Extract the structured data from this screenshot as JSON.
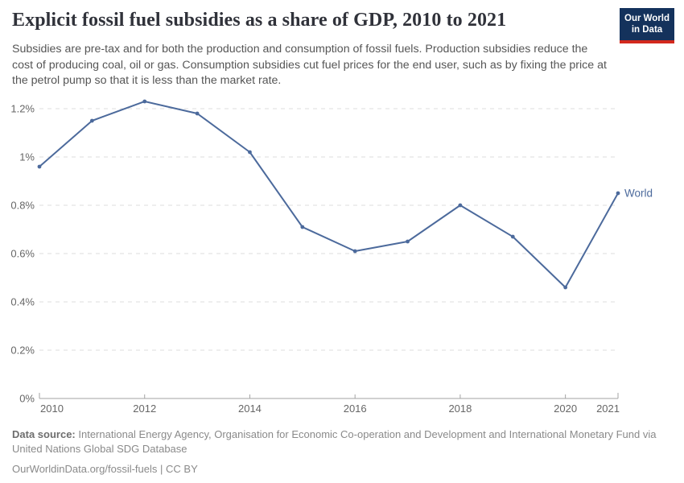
{
  "header": {
    "title": "Explicit fossil fuel subsidies as a share of GDP, 2010 to 2021",
    "subtitle": "Subsidies are pre-tax and for both the production and consumption of fossil fuels. Production subsidies reduce the cost of producing coal, oil or gas. Consumption subsidies cut fuel prices for the end user, such as by fixing the price at the petrol pump so that it is less than the market rate.",
    "logo": {
      "line1": "Our World",
      "line2": "in Data",
      "bg_color": "#14325c",
      "accent_color": "#d3291d"
    }
  },
  "chart_data": {
    "type": "line",
    "title": "Explicit fossil fuel subsidies as a share of GDP, 2010 to 2021",
    "xlabel": "",
    "ylabel": "",
    "unit": "% of GDP",
    "x": [
      2010,
      2011,
      2012,
      2013,
      2014,
      2015,
      2016,
      2017,
      2018,
      2019,
      2020,
      2021
    ],
    "series": [
      {
        "name": "World",
        "color": "#4c6a9c",
        "values": [
          0.96,
          1.15,
          1.23,
          1.18,
          1.02,
          0.71,
          0.61,
          0.65,
          0.8,
          0.67,
          0.46,
          0.85
        ]
      }
    ],
    "x_ticks": [
      2010,
      2012,
      2014,
      2016,
      2018,
      2020,
      2021
    ],
    "y_ticks": [
      0,
      0.2,
      0.4,
      0.6,
      0.8,
      1.0,
      1.2
    ],
    "y_tick_labels": [
      "0%",
      "0.2%",
      "0.4%",
      "0.6%",
      "0.8%",
      "1%",
      "1.2%"
    ],
    "ylim": [
      0,
      1.2
    ],
    "grid": true,
    "legend": "end-of-line-label"
  },
  "footer": {
    "datasource_label": "Data source:",
    "datasource_text": "International Energy Agency, Organisation for Economic Co-operation and Development and International Monetary Fund via United Nations Global SDG Database",
    "url_text": "OurWorldinData.org/fossil-fuels",
    "separator": "|",
    "license": "CC BY"
  }
}
